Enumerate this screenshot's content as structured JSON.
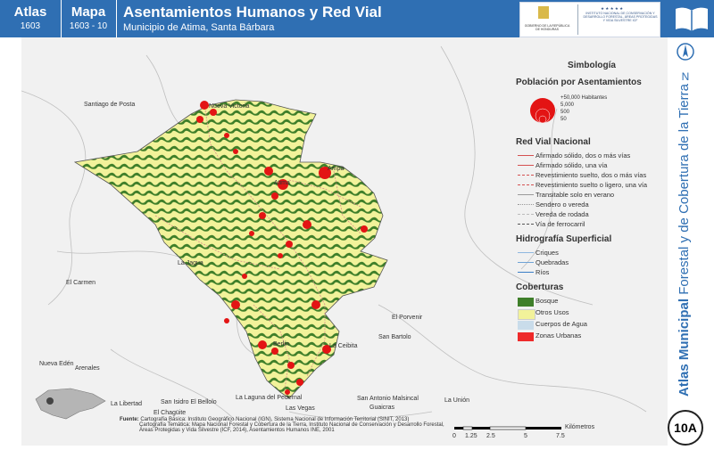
{
  "header": {
    "atlas_label": "Atlas",
    "atlas_number": "1603",
    "mapa_label": "Mapa",
    "mapa_number": "1603 - 10",
    "title": "Asentamientos Humanos y Red Vial",
    "subtitle": "Municipio de Atima, Santa Bárbara",
    "logo_text_left": "GOBIERNO DE LA REPÚBLICA DE HONDURAS",
    "logo_text_right": "INSTITUTO NACIONAL DE CONSERVACIÓN Y DESARROLLO FORESTAL, ÁREAS PROTEGIDAS Y VIDA SILVESTRE ICF"
  },
  "side": {
    "vertical_title_bold": "Atlas Municipal",
    "vertical_title_rest": " Forestal y de Cobertura de la Tierra",
    "north_label": "N",
    "badge": "10A"
  },
  "places": {
    "santiago": "Santiago de Posta",
    "victoria": "Nueva Victoria",
    "ampa": "Ampa",
    "jagua": "La Jagua",
    "carmen": "El Carmen",
    "porvenir": "El Porvenir",
    "bartolo": "San Bartolo",
    "ceibita": "La Ceibita",
    "nueva_eden": "Nueva Edén",
    "arenales": "Arenales",
    "libertad": "La Libertad",
    "isidro": "San Isidro El Bellolo",
    "pedernal": "La Laguna del Pedernal",
    "vegas": "Las Vegas",
    "antonio": "San Antonio Malsincal",
    "guaicras": "Guaicras",
    "union": "La Unión",
    "chaguite": "El Chagüite",
    "atima": "Atima",
    "berlin": "Berlín"
  },
  "legend": {
    "symbology": "Simbología",
    "pop_title": "Población por Asentamientos",
    "pop_items": [
      "+50,000 Habitantes",
      "5,000",
      "500",
      "50"
    ],
    "road_title": "Red Vial Nacional",
    "road_items": [
      "Afirmado sólido, dos o más vías",
      "Afirmado sólido, una vía",
      "Revestimiento suelto, dos o más vías",
      "Revestimiento suelto o ligero, una vía",
      "Transitable solo en verano",
      "Sendero o vereda",
      "Vereda de rodada",
      "Vía de ferrocarril"
    ],
    "hydro_title": "Hidrografía Superficial",
    "hydro_items": [
      "Criques",
      "Quebradas",
      "Ríos"
    ],
    "cover_title": "Coberturas",
    "cover_items": [
      "Bosque",
      "Otros Usos",
      "Cuerpos de Agua",
      "Zonas Urbanas"
    ],
    "colors": {
      "bosque": "#3f7f2a",
      "otros": "#f2f29a",
      "agua": "#c9dcea",
      "urbana": "#ee2a2a"
    }
  },
  "source": {
    "label": "Fuente:",
    "line1": "Cartografía Básica: Instituto Geográfico Nacional (IGN), Sistema Nacional de Información Territorial (SINIT, 2013)",
    "line2": "Cartografía Temática: Mapa Nacional Forestal y Cobertura de la Tierra, Instituto Nacional de Conservación y Desarrollo Forestal,",
    "line3": "Áreas Protegidas y Vida Silvestre (ICF, 2014), Asentamientos Humanos INE, 2001"
  },
  "scale": {
    "ticks": [
      "0",
      "1.25",
      "2.5",
      "5",
      "7.5"
    ],
    "unit": "Kilómetros"
  }
}
